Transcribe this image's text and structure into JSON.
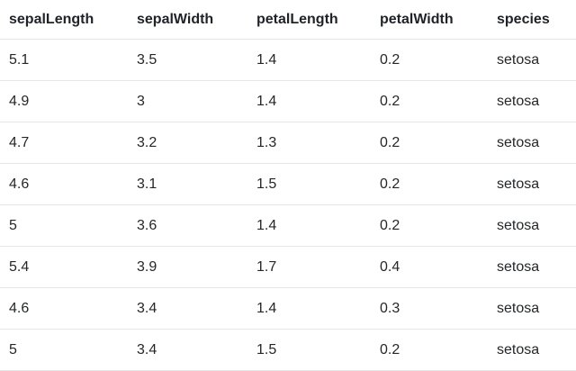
{
  "colors": {
    "background": "#ffffff",
    "header_text": "#1f2328",
    "body_text": "#242729",
    "row_divider": "#e6e6e6"
  },
  "table": {
    "columns": [
      "sepalLength",
      "sepalWidth",
      "petalLength",
      "petalWidth",
      "species"
    ],
    "rows": [
      [
        "5.1",
        "3.5",
        "1.4",
        "0.2",
        "setosa"
      ],
      [
        "4.9",
        "3",
        "1.4",
        "0.2",
        "setosa"
      ],
      [
        "4.7",
        "3.2",
        "1.3",
        "0.2",
        "setosa"
      ],
      [
        "4.6",
        "3.1",
        "1.5",
        "0.2",
        "setosa"
      ],
      [
        "5",
        "3.6",
        "1.4",
        "0.2",
        "setosa"
      ],
      [
        "5.4",
        "3.9",
        "1.7",
        "0.4",
        "setosa"
      ],
      [
        "4.6",
        "3.4",
        "1.4",
        "0.3",
        "setosa"
      ],
      [
        "5",
        "3.4",
        "1.5",
        "0.2",
        "setosa"
      ]
    ]
  }
}
